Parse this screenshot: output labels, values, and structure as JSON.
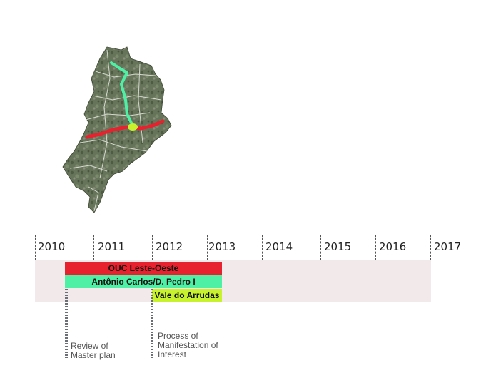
{
  "timeline": {
    "years": [
      "2010",
      "2011",
      "2012",
      "2013",
      "2014",
      "2015",
      "2016",
      "2017"
    ],
    "bars": [
      {
        "label": "OUC Leste-Oeste",
        "start": 2010.5,
        "end": 2013.0,
        "color": "#e8212e"
      },
      {
        "label": "Antônio Carlos/D. Pedro I",
        "start": 2010.5,
        "end": 2013.0,
        "color": "#4ef0a6"
      },
      {
        "label": "Vale do Arrudas",
        "start": 2012.0,
        "end": 2013.0,
        "color": "#c7f22d"
      }
    ],
    "milestones": [
      {
        "line1": "Review of",
        "line2": "Master plan",
        "line3": ""
      },
      {
        "line1": "Process of",
        "line2": "Manifestation of",
        "line3": "Interest"
      }
    ]
  },
  "map": {
    "corridors": [
      {
        "name": "Antônio Carlos/D. Pedro I",
        "color": "#4ef0a6"
      },
      {
        "name": "OUC Leste-Oeste",
        "color": "#e8212e"
      },
      {
        "name": "Vale do Arrudas",
        "color": "#c7f22d"
      }
    ],
    "base_color": "#5d6a4f"
  }
}
